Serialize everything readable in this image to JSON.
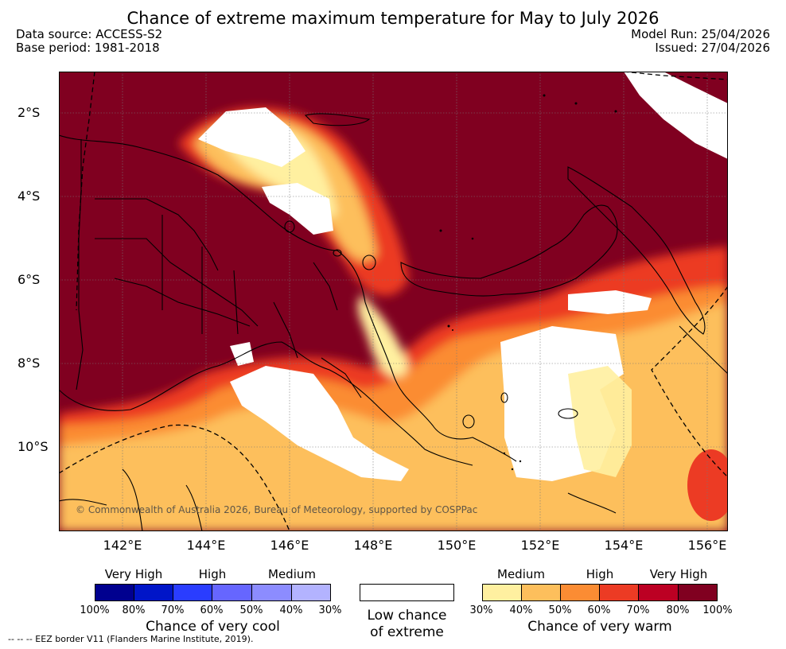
{
  "header": {
    "title": "Chance of extreme maximum temperature for May to July 2026",
    "data_source": "Data source: ACCESS-S2",
    "base_period": "Base period: 1981-2018",
    "model_run": "Model Run: 25/04/2026",
    "issued": "Issued: 27/04/2026"
  },
  "map": {
    "lat_labels": [
      "2°S",
      "4°S",
      "6°S",
      "8°S",
      "10°S"
    ],
    "lon_labels": [
      "142°E",
      "144°E",
      "146°E",
      "148°E",
      "150°E",
      "152°E",
      "154°E",
      "156°E"
    ],
    "copyright": "© Commonwealth of Australia 2026, Bureau of Meteorology, supported by COSPPac"
  },
  "legend": {
    "cool": {
      "headers": [
        "Very High",
        "High",
        "Medium"
      ],
      "ticks": [
        "100%",
        "80%",
        "70%",
        "60%",
        "50%",
        "40%",
        "30%"
      ],
      "colors": [
        "#00008f",
        "#0015c8",
        "#2a3dff",
        "#6666ff",
        "#8c8cff",
        "#b3b3ff"
      ],
      "caption": "Chance of very cool"
    },
    "neutral": {
      "line1": "Low chance",
      "line2": "of extreme"
    },
    "warm": {
      "headers": [
        "Medium",
        "High",
        "Very High"
      ],
      "ticks": [
        "30%",
        "40%",
        "50%",
        "60%",
        "70%",
        "80%",
        "100%"
      ],
      "colors": [
        "#fff0a0",
        "#fdbf5c",
        "#fb8c33",
        "#ec3b24",
        "#bc0023",
        "#800020"
      ],
      "caption": "Chance of very warm"
    },
    "eez_note": "-- -- -- EEZ border V11 (Flanders Marine Institute, 2019)."
  }
}
